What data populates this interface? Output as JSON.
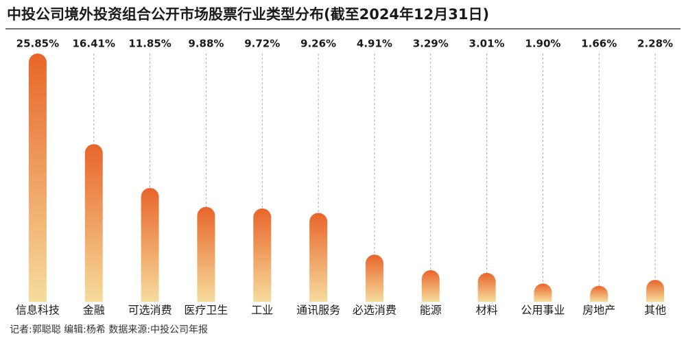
{
  "chart_data": {
    "type": "bar",
    "title": "中投公司境外投资组合公开市场股票行业类型分布(截至2024年12月31日)",
    "categories": [
      "信息科技",
      "金融",
      "可选消费",
      "医疗卫生",
      "工业",
      "通讯服务",
      "必选消费",
      "能源",
      "材料",
      "公用事业",
      "房地产",
      "其他"
    ],
    "values": [
      25.85,
      16.41,
      11.85,
      9.88,
      9.72,
      9.26,
      4.91,
      3.29,
      3.01,
      1.9,
      1.66,
      2.28
    ],
    "value_labels": [
      "25.85%",
      "16.41%",
      "11.85%",
      "9.88%",
      "9.72%",
      "9.26%",
      "4.91%",
      "3.29%",
      "3.01%",
      "1.90%",
      "1.66%",
      "2.28%"
    ],
    "colors": [
      "#e8652a",
      "#f6dc9c"
    ],
    "credits": "记者:郭聪聪   编辑:杨希   数据来源:中投公司年报"
  }
}
